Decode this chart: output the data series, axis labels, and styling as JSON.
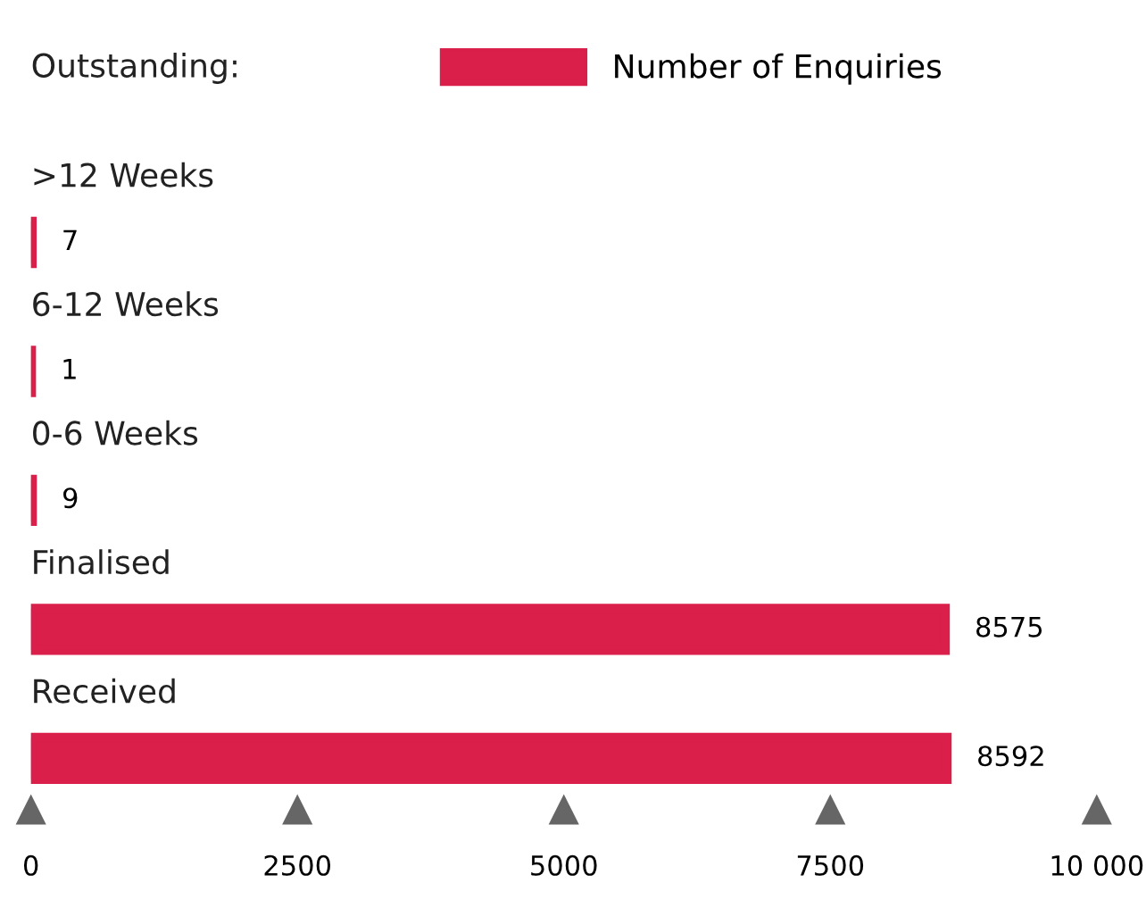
{
  "chart_data": {
    "type": "bar",
    "orientation": "horizontal",
    "categories": [
      ">12 Weeks",
      "6-12 Weeks",
      "0-6 Weeks",
      "Finalised",
      "Received"
    ],
    "series": [
      {
        "name": "Number of Enquiries",
        "color": "#d91f4a",
        "values": [
          7,
          1,
          9,
          8575,
          8592
        ]
      }
    ],
    "data_labels": true,
    "annotations": [
      "Outstanding:"
    ],
    "xlim": [
      0,
      10000
    ],
    "xticks": [
      0,
      2500,
      5000,
      7500,
      {
        "value": 10000,
        "label": "10 000"
      }
    ],
    "legend": "top",
    "grid": false
  }
}
